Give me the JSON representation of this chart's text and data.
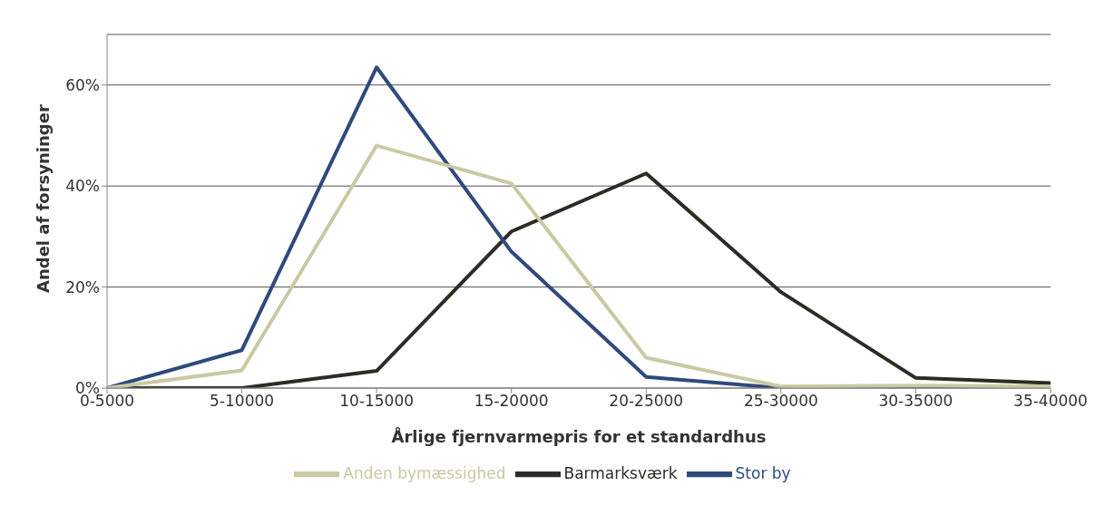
{
  "chart_data": {
    "type": "line",
    "xlabel": "Årlige fjernvarmepris for et standardhus",
    "ylabel": "Andel af forsyninger",
    "categories": [
      "0-5000",
      "5-10000",
      "10-15000",
      "15-20000",
      "20-25000",
      "25-30000",
      "30-35000",
      "35-40000"
    ],
    "series": [
      {
        "name": "Barmarksværk",
        "color": "#2b2d24",
        "values": [
          0,
          0,
          3.4,
          31,
          42.5,
          19,
          2,
          1
        ]
      },
      {
        "name": "Stor by",
        "color": "#2e4a7d",
        "values": [
          0,
          7.5,
          63.5,
          27,
          2.2,
          0,
          0,
          0
        ]
      },
      {
        "name": "Anden bymæssighed",
        "color": "#c9c9a3",
        "values": [
          0,
          3.5,
          48,
          40.5,
          6,
          0.3,
          0.5,
          0.3
        ]
      }
    ],
    "ylim": [
      0,
      70
    ],
    "yticks": [
      {
        "value": 0,
        "label": "0%"
      },
      {
        "value": 20,
        "label": "20%"
      },
      {
        "value": 40,
        "label": "40%"
      },
      {
        "value": 60,
        "label": "60%"
      }
    ],
    "grid": "y",
    "legend": "bottom",
    "marker": "none",
    "line_style": "solid"
  }
}
